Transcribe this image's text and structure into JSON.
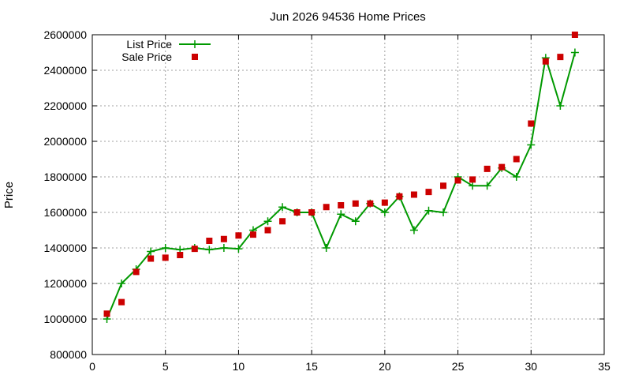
{
  "chart_data": {
    "type": "line",
    "title": "Jun 2026 94536 Home Prices",
    "xlabel": "",
    "ylabel": "Price",
    "xlim": [
      0,
      35
    ],
    "ylim": [
      800000,
      2600000
    ],
    "xticks": [
      0,
      5,
      10,
      15,
      20,
      25,
      30,
      35
    ],
    "yticks": [
      800000,
      1000000,
      1200000,
      1400000,
      1600000,
      1800000,
      2000000,
      2200000,
      2400000,
      2600000
    ],
    "grid": true,
    "legend_position": "top-left",
    "series": [
      {
        "name": "List Price",
        "style": "line+cross",
        "color": "#009900",
        "x": [
          1,
          2,
          3,
          4,
          5,
          6,
          7,
          8,
          9,
          10,
          11,
          12,
          13,
          14,
          15,
          16,
          17,
          18,
          19,
          20,
          21,
          22,
          23,
          24,
          25,
          26,
          27,
          28,
          29,
          30,
          31,
          32,
          33
        ],
        "values": [
          1000000,
          1200000,
          1280000,
          1380000,
          1400000,
          1390000,
          1400000,
          1390000,
          1400000,
          1395000,
          1500000,
          1550000,
          1630000,
          1600000,
          1600000,
          1400000,
          1590000,
          1550000,
          1650000,
          1600000,
          1690000,
          1500000,
          1610000,
          1600000,
          1800000,
          1750000,
          1750000,
          1850000,
          1800000,
          1980000,
          2470000,
          2200000,
          2500000
        ]
      },
      {
        "name": "Sale Price",
        "style": "square",
        "color": "#cc0000",
        "x": [
          1,
          2,
          3,
          4,
          5,
          6,
          7,
          8,
          9,
          10,
          11,
          12,
          13,
          14,
          15,
          16,
          17,
          18,
          19,
          20,
          21,
          22,
          23,
          24,
          25,
          26,
          27,
          28,
          29,
          30,
          31,
          32,
          33
        ],
        "values": [
          1030000,
          1095000,
          1265000,
          1340000,
          1345000,
          1360000,
          1395000,
          1440000,
          1450000,
          1470000,
          1475000,
          1500000,
          1550000,
          1600000,
          1600000,
          1630000,
          1640000,
          1650000,
          1650000,
          1655000,
          1690000,
          1700000,
          1715000,
          1750000,
          1780000,
          1785000,
          1845000,
          1855000,
          1900000,
          2100000,
          2450000,
          2475000,
          2600000
        ]
      }
    ]
  }
}
